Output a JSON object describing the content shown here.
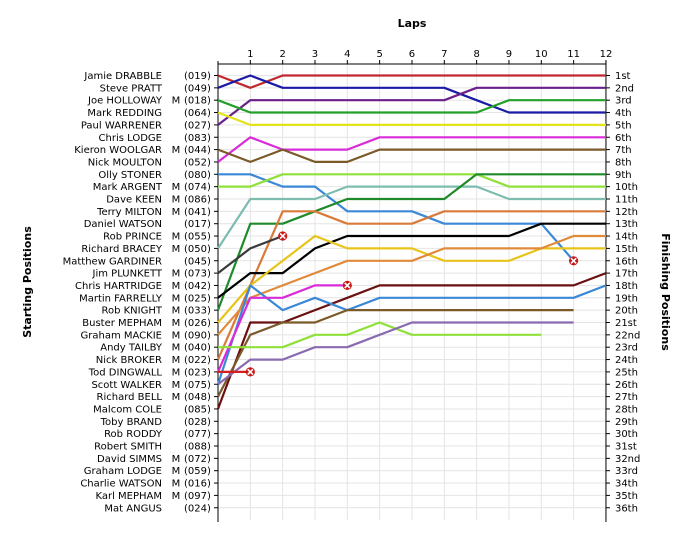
{
  "chart_data": {
    "type": "line",
    "title": "Laps",
    "left_axis_label": "Starting Positions",
    "right_axis_label": "Finishing Positions",
    "x": [
      0,
      1,
      2,
      3,
      4,
      5,
      6,
      7,
      8,
      9,
      10,
      11,
      12
    ],
    "x_tick_labels": [
      "1",
      "2",
      "3",
      "4",
      "5",
      "6",
      "7",
      "8",
      "9",
      "10",
      "11",
      "12"
    ],
    "starting_grid": [
      {
        "name": "Jamie DRABBLE",
        "cls": "",
        "num": "(019)"
      },
      {
        "name": "Steve PRATT",
        "cls": "",
        "num": "(049)"
      },
      {
        "name": "Joe HOLLOWAY",
        "cls": "M",
        "num": "(018)"
      },
      {
        "name": "Mark REDDING",
        "cls": "",
        "num": "(064)"
      },
      {
        "name": "Paul WARRENER",
        "cls": "",
        "num": "(027)"
      },
      {
        "name": "Chris LODGE",
        "cls": "",
        "num": "(083)"
      },
      {
        "name": "Kieron WOOLGAR",
        "cls": "M",
        "num": "(044)"
      },
      {
        "name": "Nick MOULTON",
        "cls": "",
        "num": "(052)"
      },
      {
        "name": "Olly STONER",
        "cls": "",
        "num": "(080)"
      },
      {
        "name": "Mark ARGENT",
        "cls": "M",
        "num": "(074)"
      },
      {
        "name": "Dave KEEN",
        "cls": "M",
        "num": "(086)"
      },
      {
        "name": "Terry MILTON",
        "cls": "M",
        "num": "(041)"
      },
      {
        "name": "Daniel WATSON",
        "cls": "",
        "num": "(017)"
      },
      {
        "name": "Rob PRINCE",
        "cls": "M",
        "num": "(055)"
      },
      {
        "name": "Richard BRACEY",
        "cls": "M",
        "num": "(050)"
      },
      {
        "name": "Matthew GARDINER",
        "cls": "",
        "num": "(045)"
      },
      {
        "name": "Jim PLUNKETT",
        "cls": "M",
        "num": "(073)"
      },
      {
        "name": "Chris HARTRIDGE",
        "cls": "M",
        "num": "(042)"
      },
      {
        "name": "Martin FARRELLY",
        "cls": "M",
        "num": "(025)"
      },
      {
        "name": "Rob KNIGHT",
        "cls": "M",
        "num": "(033)"
      },
      {
        "name": "Buster MEPHAM",
        "cls": "M",
        "num": "(026)"
      },
      {
        "name": "Graham MACKIE",
        "cls": "M",
        "num": "(090)"
      },
      {
        "name": "Andy TAILBY",
        "cls": "M",
        "num": "(040)"
      },
      {
        "name": "Nick BROKER",
        "cls": "M",
        "num": "(022)"
      },
      {
        "name": "Tod DINGWALL",
        "cls": "M",
        "num": "(023)"
      },
      {
        "name": "Scott WALKER",
        "cls": "M",
        "num": "(075)"
      },
      {
        "name": "Richard BELL",
        "cls": "M",
        "num": "(048)"
      },
      {
        "name": "Malcom COLE",
        "cls": "",
        "num": "(085)"
      },
      {
        "name": "Toby BRAND",
        "cls": "",
        "num": "(028)"
      },
      {
        "name": "Rob RODDY",
        "cls": "",
        "num": "(077)"
      },
      {
        "name": "Robert SMITH",
        "cls": "",
        "num": "(088)"
      },
      {
        "name": "David SIMMS",
        "cls": "M",
        "num": "(072)"
      },
      {
        "name": "Graham LODGE",
        "cls": "M",
        "num": "(059)"
      },
      {
        "name": "Charlie WATSON",
        "cls": "M",
        "num": "(016)"
      },
      {
        "name": "Karl MEPHAM",
        "cls": "M",
        "num": "(097)"
      },
      {
        "name": "Mat ANGUS",
        "cls": "",
        "num": "(024)"
      }
    ],
    "finishing_labels": [
      "1st",
      "2nd",
      "3rd",
      "4th",
      "5th",
      "6th",
      "7th",
      "8th",
      "9th",
      "10th",
      "11th",
      "12th",
      "13th",
      "14th",
      "15th",
      "16th",
      "17th",
      "18th",
      "19th",
      "20th",
      "21st",
      "22nd",
      "23rd",
      "24th",
      "25th",
      "26th",
      "27th",
      "28th",
      "29th",
      "30th",
      "31st",
      "32nd",
      "33rd",
      "34th",
      "35th",
      "36th"
    ],
    "series": [
      {
        "color": "#c0282d",
        "positions": [
          1,
          2,
          1,
          1,
          1,
          1,
          1,
          1,
          1,
          1,
          1,
          1,
          1
        ]
      },
      {
        "color": "#1a1aa6",
        "positions": [
          2,
          1,
          2,
          2,
          2,
          2,
          2,
          2,
          3,
          4,
          4,
          4,
          4
        ]
      },
      {
        "color": "#6a1f8a",
        "positions": [
          5,
          3,
          3,
          3,
          3,
          3,
          3,
          3,
          2,
          2,
          2,
          2,
          2
        ]
      },
      {
        "color": "#23a02a",
        "positions": [
          3,
          4,
          4,
          4,
          4,
          4,
          4,
          4,
          4,
          3,
          3,
          3,
          3
        ]
      },
      {
        "color": "#e3e31a",
        "positions": [
          4,
          5,
          5,
          5,
          5,
          5,
          5,
          5,
          5,
          5,
          5,
          5,
          5
        ]
      },
      {
        "color": "#d92bd9",
        "positions": [
          8,
          6,
          7,
          7,
          7,
          6,
          6,
          6,
          6,
          6,
          6,
          6,
          6
        ]
      },
      {
        "color": "#7a5a28",
        "positions": [
          7,
          8,
          7,
          8,
          8,
          7,
          7,
          7,
          7,
          7,
          7,
          7,
          7
        ]
      },
      {
        "color": "#3a88d6",
        "positions": [
          9,
          9,
          10,
          10,
          12,
          12,
          12,
          13,
          13,
          13,
          13,
          16
        ]
      },
      {
        "color": "#8fe03a",
        "positions": [
          10,
          10,
          9,
          9,
          9,
          9,
          9,
          9,
          9,
          10,
          10,
          10,
          10
        ]
      },
      {
        "color": "#7cbdb0",
        "positions": [
          15,
          11,
          11,
          11,
          10,
          10,
          10,
          10,
          10,
          11,
          11,
          11,
          11
        ]
      },
      {
        "color": "#1f8a2a",
        "positions": [
          20,
          13,
          13,
          12,
          11,
          11,
          11,
          11,
          9,
          9,
          9,
          9,
          9
        ]
      },
      {
        "color": "#d97a3a",
        "positions": [
          24,
          18,
          12,
          12,
          13,
          13,
          13,
          12,
          12,
          12,
          12,
          12,
          12
        ]
      },
      {
        "color": "#000000",
        "positions": [
          19,
          17,
          17,
          15,
          14,
          14,
          14,
          14,
          14,
          14,
          13,
          13,
          13
        ]
      },
      {
        "color": "#e8c41a",
        "positions": [
          21,
          18,
          16,
          14,
          15,
          15,
          15,
          16,
          16,
          16,
          15,
          15,
          15
        ]
      },
      {
        "color": "#3a3a3a",
        "positions": [
          17,
          15,
          14
        ]
      },
      {
        "color": "#e08a3a",
        "positions": [
          22,
          19,
          18,
          17,
          16,
          16,
          16,
          15,
          15,
          15,
          15,
          14,
          14
        ]
      },
      {
        "color": "#6a1010",
        "positions": [
          28,
          21,
          21,
          20,
          19,
          18,
          18,
          18,
          18,
          18,
          18,
          18,
          17
        ]
      },
      {
        "color": "#3a88d6",
        "positions": [
          26,
          18,
          20,
          19,
          20,
          19,
          19,
          19,
          19,
          19,
          19,
          19,
          18
        ]
      },
      {
        "color": "#d92bd9",
        "positions": [
          25,
          19,
          19,
          18,
          18
        ]
      },
      {
        "color": "#7a5a28",
        "positions": [
          27,
          22,
          21,
          21,
          20,
          20,
          20,
          20,
          20,
          20,
          20,
          20
        ]
      },
      {
        "color": "#8fe03a",
        "positions": [
          23,
          23,
          23,
          22,
          22,
          21,
          22,
          22,
          22,
          22,
          22
        ]
      },
      {
        "color": "#8a6ab0",
        "positions": [
          26,
          24,
          24,
          23,
          23,
          22,
          21,
          21,
          21,
          21,
          21,
          21
        ]
      },
      {
        "color": "#d62020",
        "positions": [
          25,
          25
        ]
      }
    ],
    "retirements": [
      {
        "lap": 2,
        "position": 14
      },
      {
        "lap": 4,
        "position": 18
      },
      {
        "lap": 11,
        "position": 16
      },
      {
        "lap": 1,
        "position": 25
      }
    ],
    "grid": true
  }
}
